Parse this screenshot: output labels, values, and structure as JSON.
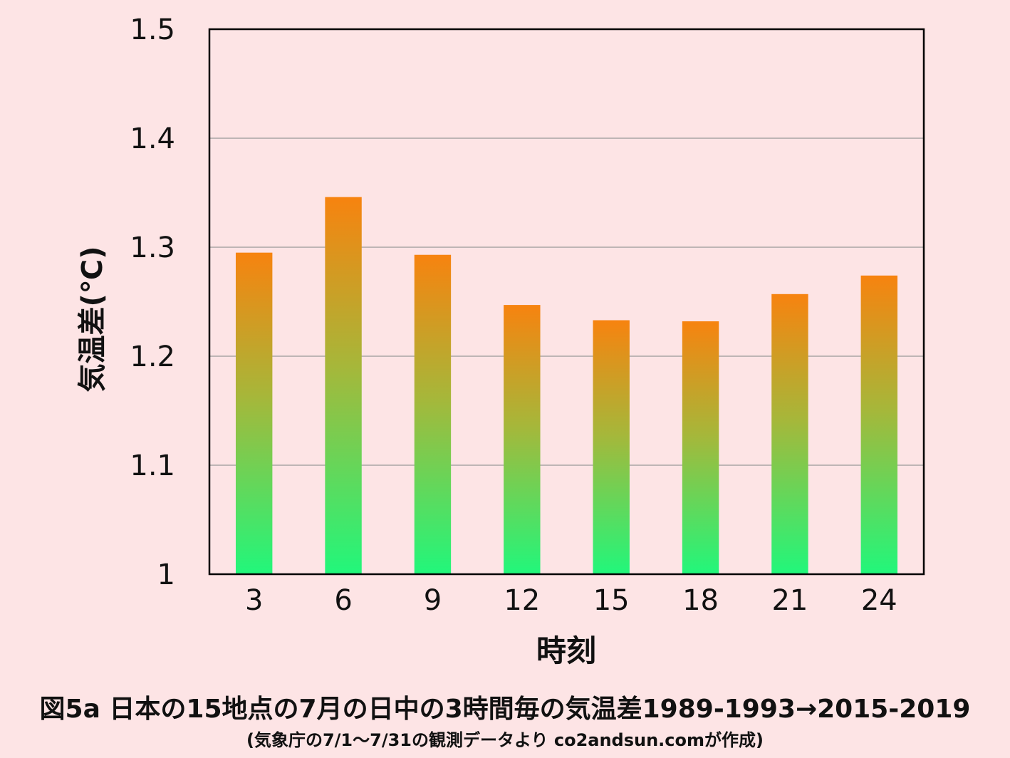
{
  "chart_data": {
    "type": "bar",
    "categories": [
      "3",
      "6",
      "9",
      "12",
      "15",
      "18",
      "21",
      "24"
    ],
    "values": [
      1.295,
      1.346,
      1.293,
      1.247,
      1.233,
      1.232,
      1.257,
      1.274
    ],
    "xlabel": "時刻",
    "ylabel": "気温差(℃)",
    "ylim": [
      1,
      1.5
    ],
    "yticks": [
      "1",
      "1.1",
      "1.2",
      "1.3",
      "1.4",
      "1.5"
    ],
    "grid": true,
    "legend": "none",
    "bar_color_top": "#f7830f",
    "bar_color_bottom": "#21f77b",
    "gridline_color": "#999999",
    "axis_color": "#000000"
  },
  "caption": {
    "title": "図5a  日本の15地点の7月の日中の3時間毎の気温差1989-1993→2015-2019",
    "source": "(気象庁の7/1〜7/31の観測データより co2andsun.comが作成)"
  },
  "colors": {
    "background": "#fde4e5"
  }
}
